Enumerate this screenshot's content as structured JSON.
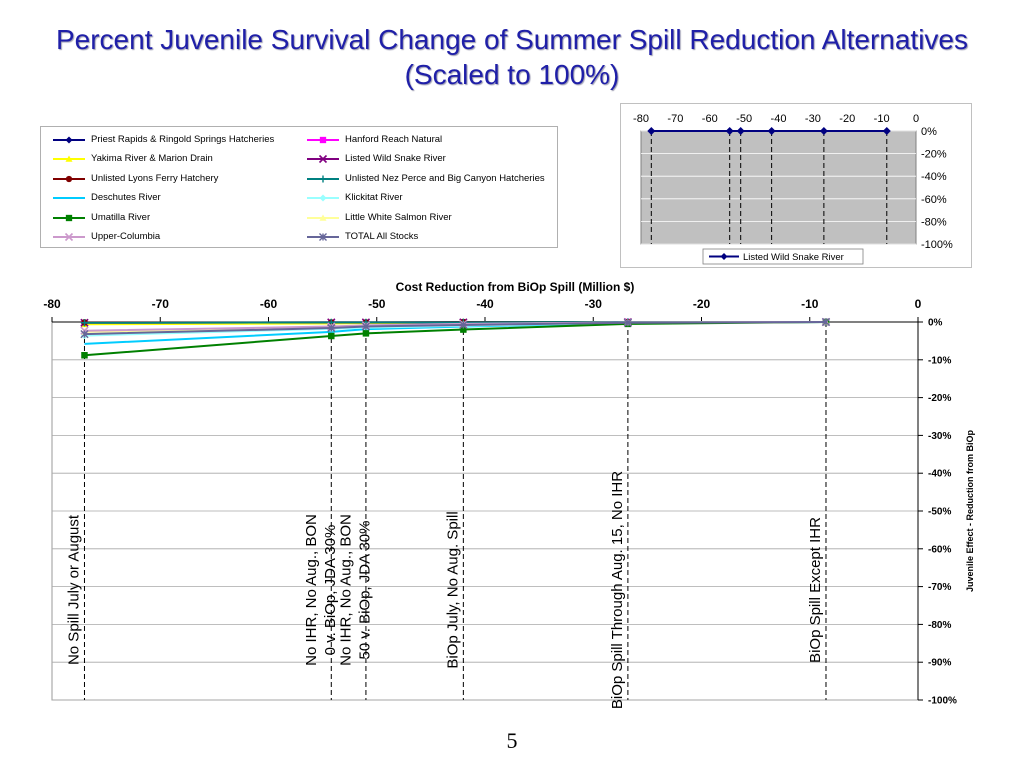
{
  "title": {
    "line1": "Percent Juvenile Survival Change of Summer Spill Reduction Alternatives",
    "line2": "(Scaled to 100%)"
  },
  "page_number": "5",
  "legend": [
    {
      "label": "Priest Rapids & Ringold Springs Hatcheries",
      "color": "#000080",
      "marker": "diamond"
    },
    {
      "label": "Hanford Reach Natural",
      "color": "#ff00ff",
      "marker": "square"
    },
    {
      "label": "Yakima River & Marion Drain",
      "color": "#ffff00",
      "marker": "triangle"
    },
    {
      "label": "Listed Wild Snake River",
      "color": "#800080",
      "marker": "x"
    },
    {
      "label": "Unlisted Lyons Ferry Hatchery",
      "color": "#800000",
      "marker": "circle"
    },
    {
      "label": "Unlisted Nez Perce and Big Canyon Hatcheries",
      "color": "#008080",
      "marker": "plus"
    },
    {
      "label": "Deschutes River",
      "color": "#00ccff",
      "marker": "none"
    },
    {
      "label": "Klickitat River",
      "color": "#99ffff",
      "marker": "diamond"
    },
    {
      "label": "Umatilla River",
      "color": "#008000",
      "marker": "square"
    },
    {
      "label": "Little White Salmon River",
      "color": "#ffff99",
      "marker": "triangle"
    },
    {
      "label": "Upper-Columbia",
      "color": "#cc99cc",
      "marker": "x"
    },
    {
      "label": "TOTAL All Stocks",
      "color": "#666699",
      "marker": "asterisk"
    }
  ],
  "chart_data": [
    {
      "type": "line",
      "title": "Cost Reduction from BiOp Spill (Million $)",
      "xlabel": "Cost Reduction from BiOp Spill (Million $)",
      "ylabel": "Juvenile Effect - Reduction from BiOp",
      "xlim": [
        -80,
        0
      ],
      "ylim": [
        -100,
        0
      ],
      "x_ticks": [
        "-80",
        "-70",
        "-60",
        "-50",
        "-40",
        "-30",
        "-20",
        "-10",
        "0"
      ],
      "y_ticks": [
        "0%",
        "-10%",
        "-20%",
        "-30%",
        "-40%",
        "-50%",
        "-60%",
        "-70%",
        "-80%",
        "-90%",
        "-100%"
      ],
      "grid": true,
      "x": [
        -77,
        -54.2,
        -51,
        -42,
        -26.8,
        -8.5
      ],
      "series": [
        {
          "name": "Priest Rapids & Ringold Springs Hatcheries",
          "color": "#000080",
          "values": [
            -0.3,
            -0.2,
            -0.2,
            -0.1,
            0,
            0
          ]
        },
        {
          "name": "Hanford Reach Natural",
          "color": "#ff00ff",
          "values": [
            -0.3,
            -0.2,
            -0.2,
            -0.1,
            0,
            0
          ]
        },
        {
          "name": "Yakima River & Marion Drain",
          "color": "#ffff00",
          "values": [
            -0.6,
            -0.4,
            -0.3,
            -0.2,
            0,
            0
          ]
        },
        {
          "name": "Listed Wild Snake River",
          "color": "#800080",
          "values": [
            -0.2,
            -0.1,
            -0.1,
            -0.1,
            0,
            0
          ]
        },
        {
          "name": "Unlisted Lyons Ferry Hatchery",
          "color": "#800000",
          "values": [
            -0.1,
            -0.1,
            -0.1,
            0,
            0,
            0
          ]
        },
        {
          "name": "Unlisted Nez Perce and Big Canyon Hatcheries",
          "color": "#008080",
          "values": [
            -0.2,
            -0.1,
            -0.1,
            -0.1,
            0,
            0
          ]
        },
        {
          "name": "Deschutes River",
          "color": "#00ccff",
          "values": [
            -5.8,
            -2.6,
            -1.9,
            -1.2,
            -0.3,
            0
          ]
        },
        {
          "name": "Klickitat River",
          "color": "#99ffff",
          "values": [
            -3.6,
            -1.8,
            -1.5,
            -1.0,
            -0.2,
            0
          ]
        },
        {
          "name": "Umatilla River",
          "color": "#008000",
          "values": [
            -8.8,
            -3.7,
            -3.0,
            -2.0,
            -0.5,
            0
          ]
        },
        {
          "name": "Little White Salmon River",
          "color": "#ffff99",
          "values": [
            -2.6,
            -1.3,
            -1.0,
            -0.6,
            -0.1,
            0
          ]
        },
        {
          "name": "Upper-Columbia",
          "color": "#cc99cc",
          "values": [
            -2.3,
            -1.2,
            -0.9,
            -0.5,
            -0.1,
            0
          ]
        },
        {
          "name": "TOTAL All Stocks",
          "color": "#666699",
          "values": [
            -3.2,
            -1.6,
            -1.2,
            -0.8,
            -0.2,
            0
          ]
        }
      ],
      "annotations": [
        {
          "x": -77,
          "lines": [
            "No Spill July or August"
          ]
        },
        {
          "x": -54.2,
          "lines": [
            "No IHR, No Aug., BON",
            "0 v. BiOp, JDA 30%"
          ]
        },
        {
          "x": -51,
          "lines": [
            "No IHR, No Aug., BON",
            "50 v. BiOp, JDA 30%"
          ]
        },
        {
          "x": -42,
          "lines": [
            "BiOp July, No Aug. Spill"
          ]
        },
        {
          "x": -26.8,
          "lines": [
            "BiOp Spill Through Aug. 15, No IHR"
          ]
        },
        {
          "x": -8.5,
          "lines": [
            "BiOp Spill Except IHR"
          ]
        }
      ]
    },
    {
      "type": "line",
      "xlim": [
        -80,
        0
      ],
      "ylim": [
        -100,
        0
      ],
      "x_ticks": [
        "-80",
        "-70",
        "-60",
        "-50",
        "-40",
        "-30",
        "-20",
        "-10",
        "0"
      ],
      "y_ticks": [
        "0%",
        "-20%",
        "-40%",
        "-60%",
        "-80%",
        "-100%"
      ],
      "grid": true,
      "legend": "bottom",
      "series": [
        {
          "name": "Listed Wild Snake River",
          "color": "#000080",
          "x": [
            -77,
            -54.2,
            -51,
            -42,
            -26.8,
            -8.5
          ],
          "values": [
            0,
            0,
            0,
            0,
            0,
            0
          ]
        }
      ]
    }
  ]
}
